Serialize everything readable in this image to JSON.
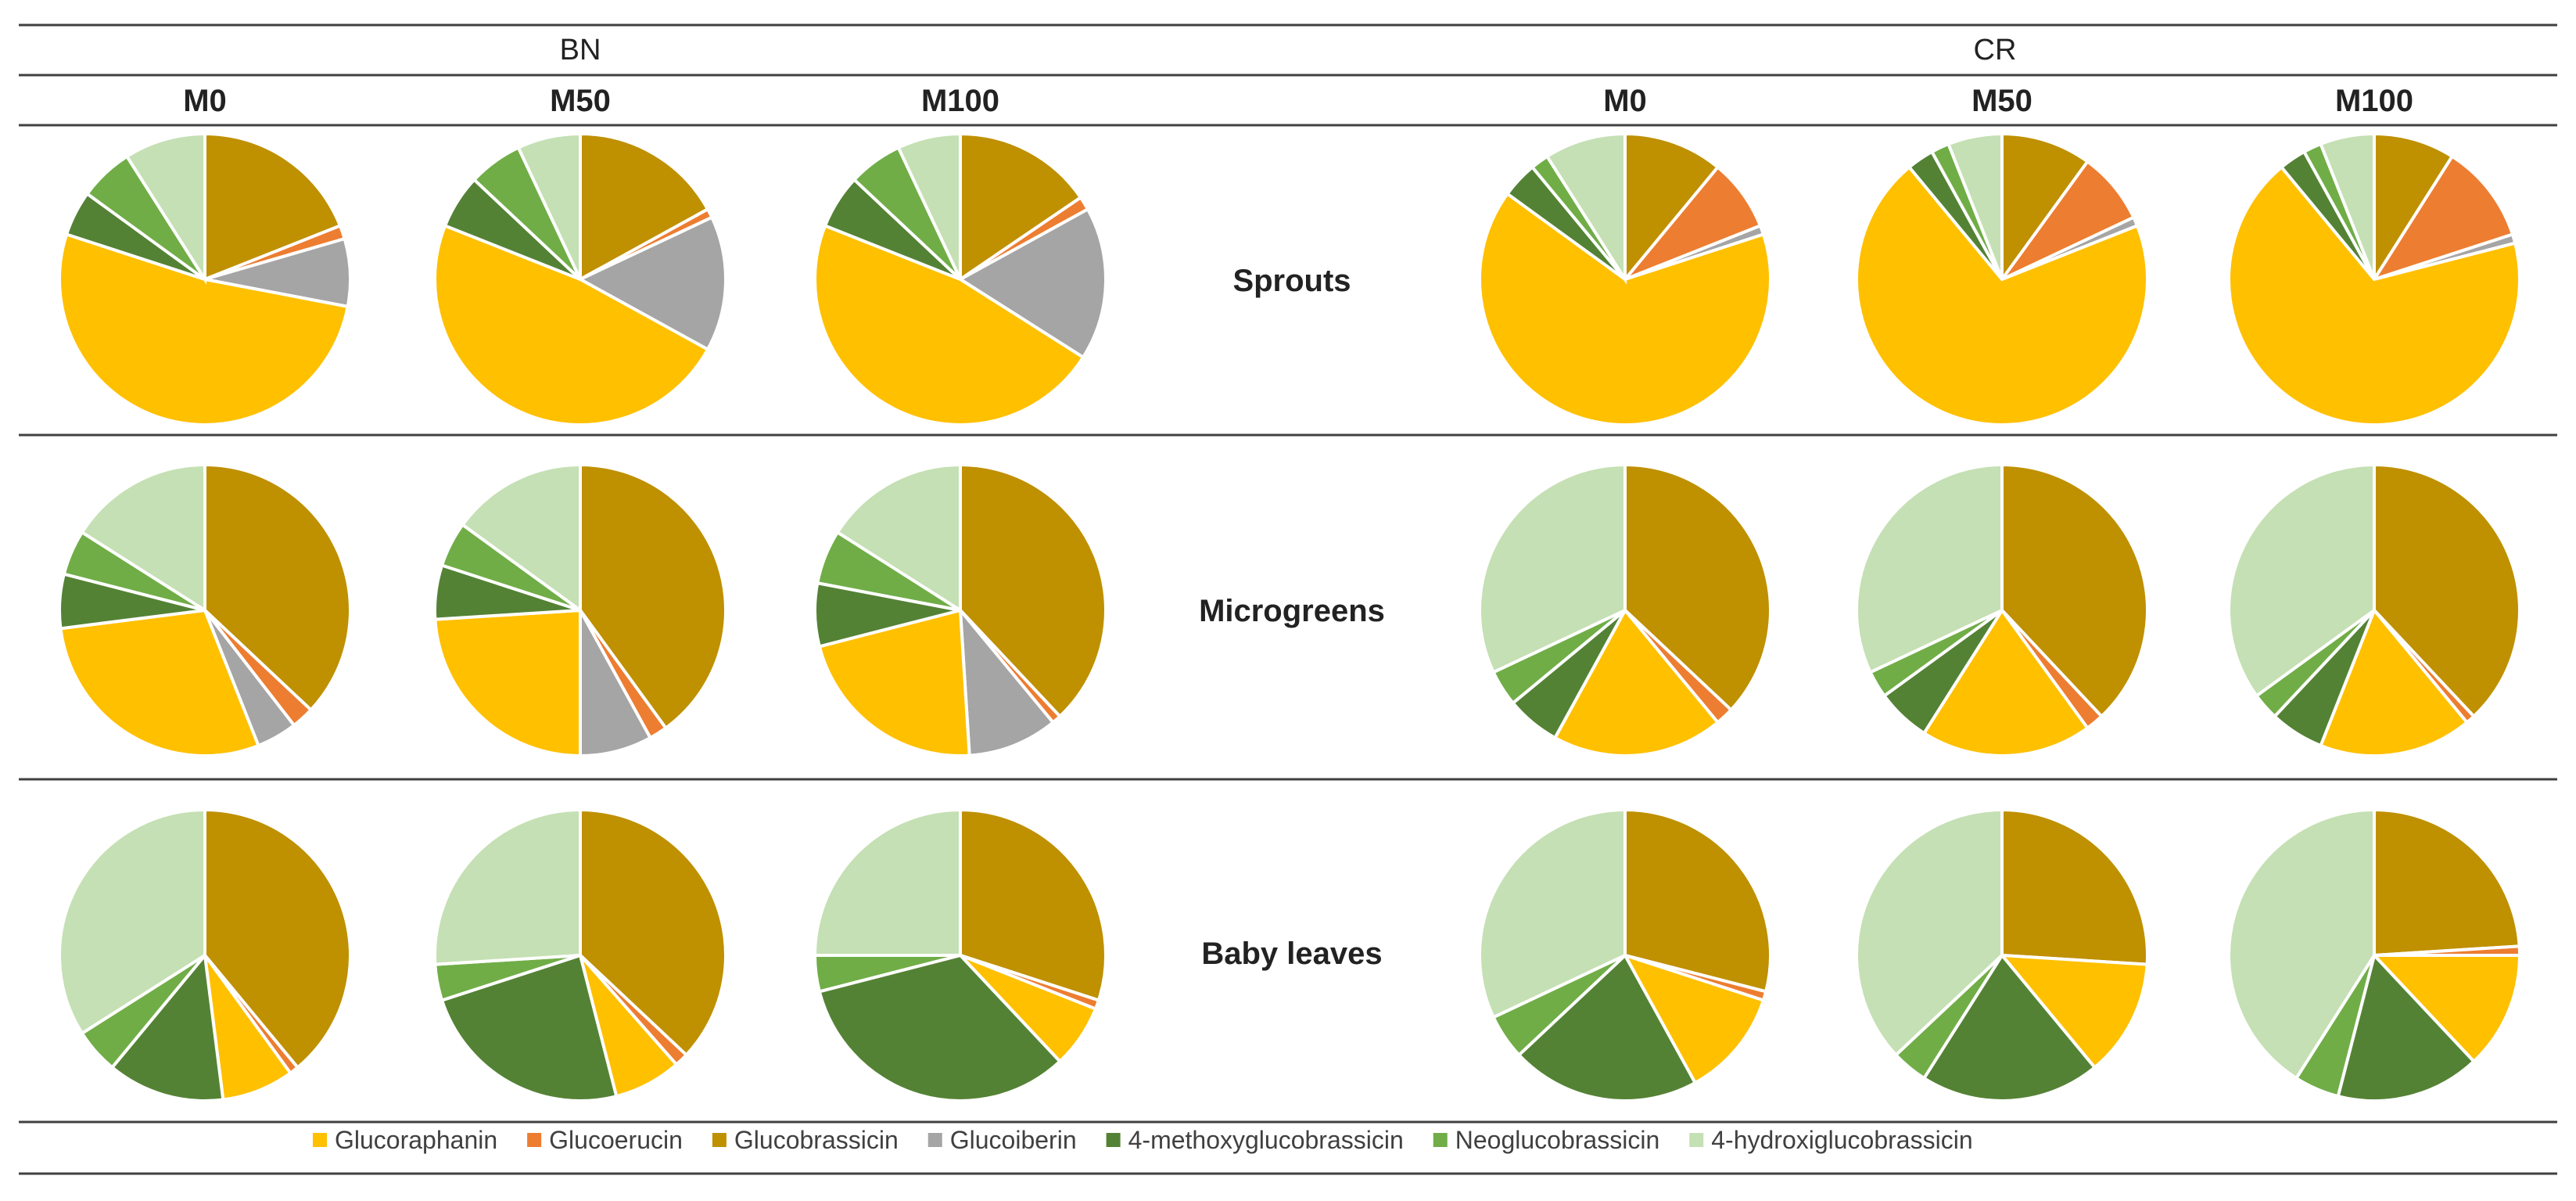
{
  "groups": [
    {
      "name": "BN",
      "levels": [
        "M0",
        "M50",
        "M100"
      ]
    },
    {
      "name": "CR",
      "levels": [
        "M0",
        "M50",
        "M100"
      ]
    }
  ],
  "rows": [
    "Sprouts",
    "Microgreens",
    "Baby leaves"
  ],
  "legend": {
    "items": [
      {
        "label": "Glucoraphanin",
        "color": "#FFC000"
      },
      {
        "label": "Glucoerucin",
        "color": "#ED7D31"
      },
      {
        "label": "Glucobrassicin",
        "color": "#BF9000"
      },
      {
        "label": "Glucoiberin",
        "color": "#A5A5A5"
      },
      {
        "label": "4-methoxyglucobrassicin",
        "color": "#548235"
      },
      {
        "label": "Neoglucobrassicin",
        "color": "#70AD47"
      },
      {
        "label": "4-hydroxiglucobrassicin",
        "color": "#C5E0B4"
      }
    ]
  },
  "chart_data": {
    "type": "pie",
    "series_order": [
      "Glucobrassicin",
      "Glucoerucin",
      "Glucoiberin",
      "Glucoraphanin",
      "4-methoxyglucobrassicin",
      "Neoglucobrassicin",
      "4-hydroxiglucobrassicin"
    ],
    "values_unit": "percent of total glucosinolates (estimated)",
    "pies": [
      {
        "group": "BN",
        "level": "M0",
        "row": "Sprouts",
        "values": [
          19,
          1.5,
          7.5,
          52,
          5,
          6,
          9
        ]
      },
      {
        "group": "BN",
        "level": "M50",
        "row": "Sprouts",
        "values": [
          17,
          1,
          15,
          48,
          6,
          6,
          7
        ]
      },
      {
        "group": "BN",
        "level": "M100",
        "row": "Sprouts",
        "values": [
          15.5,
          1.5,
          17,
          47,
          6,
          6,
          7
        ]
      },
      {
        "group": "CR",
        "level": "M0",
        "row": "Sprouts",
        "values": [
          11,
          8,
          1,
          65,
          4,
          2,
          9
        ]
      },
      {
        "group": "CR",
        "level": "M50",
        "row": "Sprouts",
        "values": [
          10,
          8,
          1,
          70,
          3,
          2,
          6
        ]
      },
      {
        "group": "CR",
        "level": "M100",
        "row": "Sprouts",
        "values": [
          9,
          11,
          1,
          68,
          3,
          2,
          6
        ]
      },
      {
        "group": "BN",
        "level": "M0",
        "row": "Microgreens",
        "values": [
          37,
          2.5,
          4.5,
          29,
          6,
          5,
          16
        ]
      },
      {
        "group": "BN",
        "level": "M50",
        "row": "Microgreens",
        "values": [
          40,
          2,
          8,
          24,
          6,
          5,
          15
        ]
      },
      {
        "group": "BN",
        "level": "M100",
        "row": "Microgreens",
        "values": [
          38,
          1,
          10,
          22,
          7,
          6,
          16
        ]
      },
      {
        "group": "CR",
        "level": "M0",
        "row": "Microgreens",
        "values": [
          37,
          2,
          0,
          19,
          6,
          4,
          32
        ]
      },
      {
        "group": "CR",
        "level": "M50",
        "row": "Microgreens",
        "values": [
          38,
          2,
          0,
          19,
          6,
          3,
          32
        ]
      },
      {
        "group": "CR",
        "level": "M100",
        "row": "Microgreens",
        "values": [
          38,
          1,
          0,
          17,
          6,
          3,
          35
        ]
      },
      {
        "group": "BN",
        "level": "M0",
        "row": "Baby leaves",
        "values": [
          39,
          1,
          0,
          8,
          13,
          5,
          34
        ]
      },
      {
        "group": "BN",
        "level": "M50",
        "row": "Baby leaves",
        "values": [
          37,
          1.5,
          0,
          7.5,
          24,
          4,
          26
        ]
      },
      {
        "group": "BN",
        "level": "M100",
        "row": "Baby leaves",
        "values": [
          30,
          1,
          0,
          7,
          33,
          4,
          25
        ]
      },
      {
        "group": "CR",
        "level": "M0",
        "row": "Baby leaves",
        "values": [
          29,
          1,
          0,
          12,
          21,
          5,
          32
        ]
      },
      {
        "group": "CR",
        "level": "M50",
        "row": "Baby leaves",
        "values": [
          26,
          0,
          0,
          13,
          20,
          4,
          37
        ]
      },
      {
        "group": "CR",
        "level": "M100",
        "row": "Baby leaves",
        "values": [
          24,
          1,
          0,
          13,
          16,
          5,
          41
        ]
      }
    ]
  }
}
